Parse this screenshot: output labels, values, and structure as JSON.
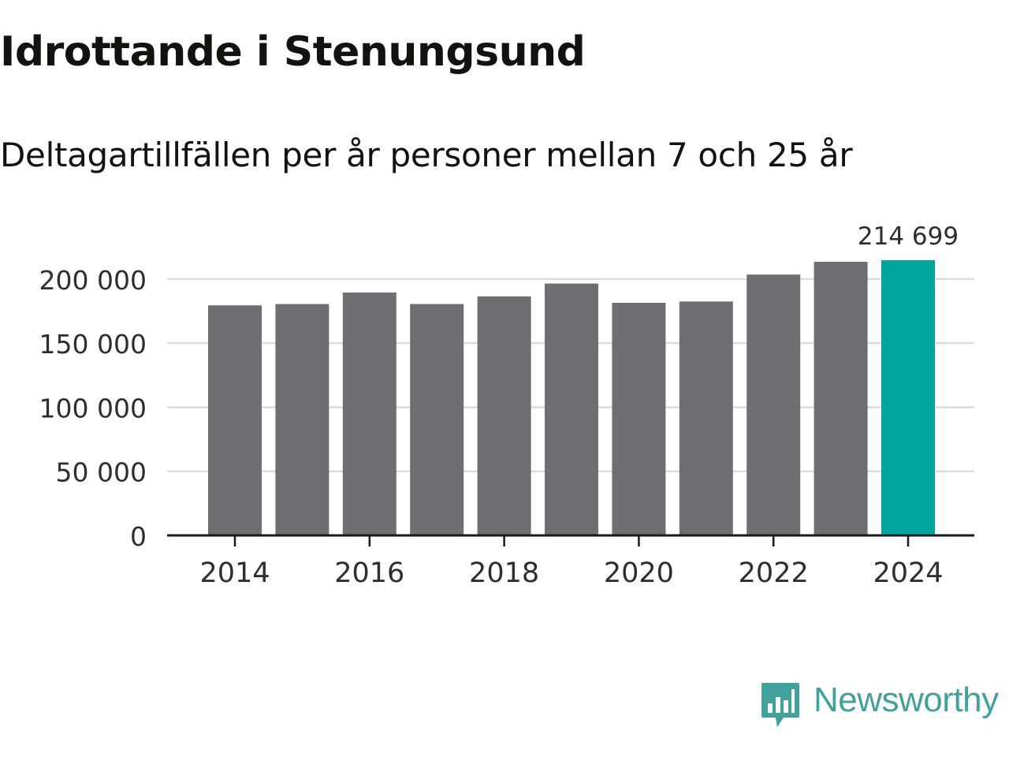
{
  "header": {
    "title": "Idrottande i Stenungsund",
    "subtitle": "Deltagartillfällen per år personer mellan 7 och 25 år"
  },
  "brand": {
    "name": "Newsworthy",
    "icon": "newsworthy-logo-icon",
    "color": "#3fa39b"
  },
  "colors": {
    "bar": "#6f6e73",
    "highlight": "#00a69c",
    "grid": "#dcdcdc",
    "axis": "#1a1a1a"
  },
  "chart_data": {
    "type": "bar",
    "title": "Idrottande i Stenungsund",
    "subtitle": "Deltagartillfällen per år personer mellan 7 och 25 år",
    "xlabel": "",
    "ylabel": "",
    "categories": [
      2014,
      2015,
      2016,
      2017,
      2018,
      2019,
      2020,
      2021,
      2022,
      2023,
      2024
    ],
    "values": [
      179500,
      180500,
      189500,
      180500,
      186500,
      196500,
      181500,
      182500,
      203500,
      213500,
      214699
    ],
    "highlight_index": 10,
    "value_label": "214 699",
    "ylim": [
      0,
      214699
    ],
    "yticks": [
      0,
      50000,
      100000,
      150000,
      200000
    ],
    "ytick_labels": [
      "0",
      "50 000",
      "100 000",
      "150 000",
      "200 000"
    ],
    "xticks": [
      2014,
      2016,
      2018,
      2020,
      2022,
      2024
    ],
    "xtick_labels": [
      "2014",
      "2016",
      "2018",
      "2020",
      "2022",
      "2024"
    ],
    "grid": true,
    "legend": "none"
  }
}
